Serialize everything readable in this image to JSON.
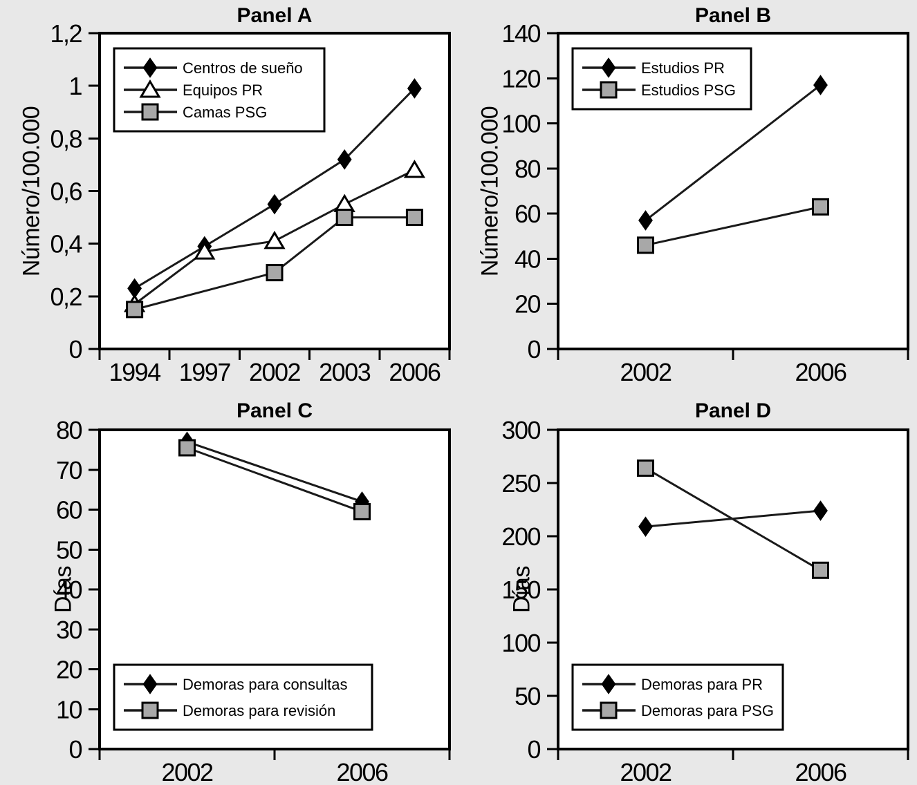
{
  "figure": {
    "background_color": "#e8e8e8",
    "plot_background_color": "#ffffff",
    "axis_color": "#000000",
    "line_color": "#1a1a1a"
  },
  "chart_data": [
    {
      "id": "panel-a",
      "type": "line",
      "title": "Panel A",
      "ylabel": "Número/100.000",
      "xlabel": "",
      "ylim": [
        0,
        1.2
      ],
      "ytick_values": [
        0,
        0.2,
        0.4,
        0.6,
        0.8,
        1,
        1.2
      ],
      "ytick_labels": [
        "0",
        "0,2",
        "0,4",
        "0,6",
        "0,8",
        "1",
        "1,2"
      ],
      "categories": [
        "1994",
        "1997",
        "2002",
        "2003",
        "2006"
      ],
      "grid": false,
      "legend_position": "top-left",
      "series": [
        {
          "name": "Centros de sueño",
          "marker": "diamond",
          "marker_fill": "#000000",
          "values": [
            0.23,
            0.39,
            0.55,
            0.72,
            0.99
          ]
        },
        {
          "name": "Equipos PR",
          "marker": "triangle",
          "marker_fill": "#ffffff",
          "values": [
            0.17,
            0.37,
            0.41,
            0.55,
            0.68
          ]
        },
        {
          "name": "Camas PSG",
          "marker": "square",
          "marker_fill": "#a8a8a8",
          "values": [
            0.15,
            null,
            0.29,
            0.5,
            0.5
          ]
        }
      ]
    },
    {
      "id": "panel-b",
      "type": "line",
      "title": "Panel B",
      "ylabel": "Número/100.000",
      "xlabel": "",
      "ylim": [
        0,
        140
      ],
      "ytick_values": [
        0,
        20,
        40,
        60,
        80,
        100,
        120,
        140
      ],
      "ytick_labels": [
        "0",
        "20",
        "40",
        "60",
        "80",
        "100",
        "120",
        "140"
      ],
      "categories": [
        "2002",
        "2006"
      ],
      "grid": false,
      "legend_position": "top-left",
      "series": [
        {
          "name": "Estudios PR",
          "marker": "diamond",
          "marker_fill": "#000000",
          "values": [
            57,
            117
          ]
        },
        {
          "name": "Estudios PSG",
          "marker": "square",
          "marker_fill": "#a8a8a8",
          "values": [
            46,
            63
          ]
        }
      ]
    },
    {
      "id": "panel-c",
      "type": "line",
      "title": "Panel C",
      "ylabel": "Días",
      "xlabel": "",
      "ylim": [
        0,
        80
      ],
      "ytick_values": [
        0,
        10,
        20,
        30,
        40,
        50,
        60,
        70,
        80
      ],
      "ytick_labels": [
        "0",
        "10",
        "20",
        "30",
        "40",
        "50",
        "60",
        "70",
        "80"
      ],
      "categories": [
        "2002",
        "2006"
      ],
      "grid": false,
      "legend_position": "bottom-left",
      "series": [
        {
          "name": "Demoras para consultas",
          "marker": "diamond",
          "marker_fill": "#000000",
          "values": [
            77,
            62
          ]
        },
        {
          "name": "Demoras para revisión",
          "marker": "square",
          "marker_fill": "#a8a8a8",
          "values": [
            75.5,
            59.5
          ]
        }
      ]
    },
    {
      "id": "panel-d",
      "type": "line",
      "title": "Panel D",
      "ylabel": "Días",
      "xlabel": "",
      "ylim": [
        0,
        300
      ],
      "ytick_values": [
        0,
        50,
        100,
        150,
        200,
        250,
        300
      ],
      "ytick_labels": [
        "0",
        "50",
        "100",
        "150",
        "200",
        "250",
        "300"
      ],
      "categories": [
        "2002",
        "2006"
      ],
      "grid": false,
      "legend_position": "bottom-left",
      "series": [
        {
          "name": "Demoras para PR",
          "marker": "diamond",
          "marker_fill": "#000000",
          "values": [
            209,
            224
          ]
        },
        {
          "name": "Demoras para PSG",
          "marker": "square",
          "marker_fill": "#a8a8a8",
          "values": [
            264,
            168
          ]
        }
      ]
    }
  ]
}
